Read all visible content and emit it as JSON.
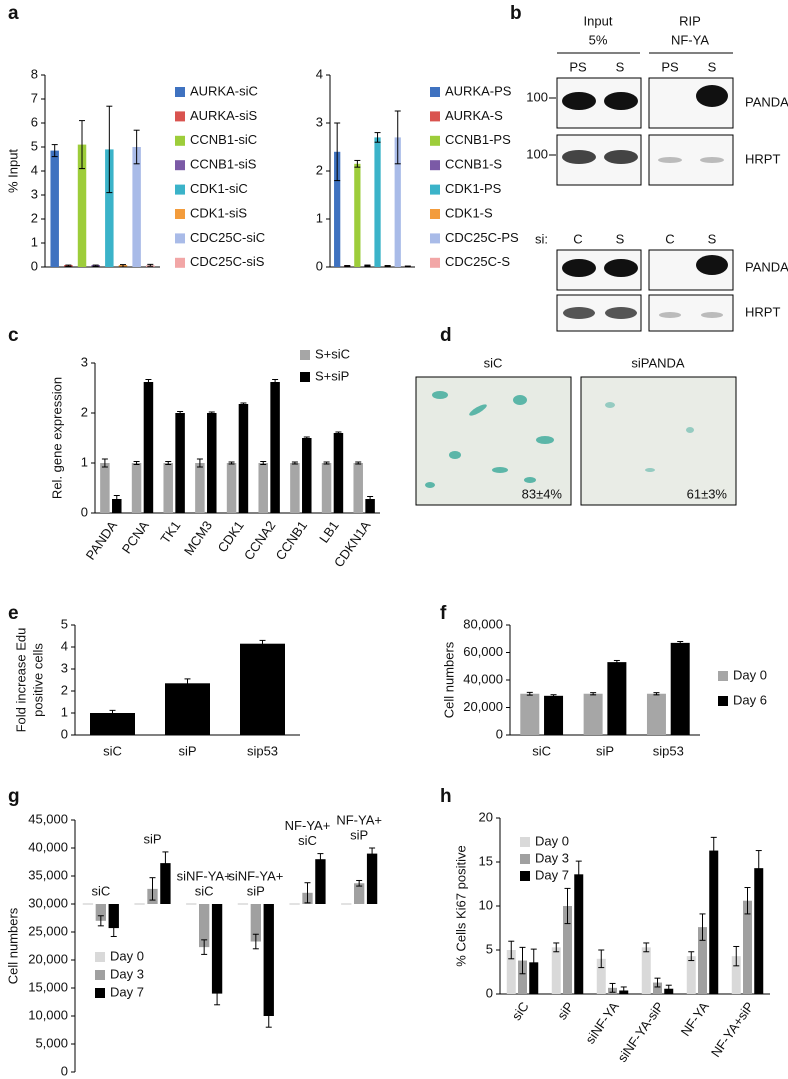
{
  "panel_labels": [
    "a",
    "b",
    "c",
    "d",
    "e",
    "f",
    "g",
    "h"
  ],
  "gel": {
    "header": [
      [
        "Input",
        "5%"
      ],
      [
        "RIP",
        "NF-YA"
      ]
    ],
    "lanes": [
      "PS",
      "S",
      "PS",
      "S"
    ],
    "markers": [
      "100",
      "100"
    ],
    "rows": [
      "PANDA",
      "HRPT",
      "PANDA",
      "HRPT"
    ],
    "si_label": "si:",
    "si_lanes": [
      "C",
      "S",
      "C",
      "S"
    ]
  },
  "staining": [
    {
      "label": "siC",
      "value": "83±4%"
    },
    {
      "label": "siPANDA",
      "value": "61±3%"
    }
  ],
  "chart_data": [
    {
      "type": "bar",
      "ylabel": "% Input",
      "categories": [
        null
      ],
      "ylim": [
        0,
        8
      ],
      "yticks": [
        0,
        1,
        2,
        3,
        4,
        5,
        6,
        7,
        8
      ],
      "legend": "right",
      "series": [
        {
          "name": "AURKA-siC",
          "color": "#3f72c0",
          "values": [
            4.85
          ],
          "errors": [
            0.25
          ]
        },
        {
          "name": "AURKA-siS",
          "color": "#d9534f",
          "values": [
            0.05
          ],
          "errors": [
            0.03
          ]
        },
        {
          "name": "CCNB1-siC",
          "color": "#9dcd3a",
          "values": [
            5.1
          ],
          "errors": [
            1.0
          ]
        },
        {
          "name": "CCNB1-siS",
          "color": "#7b5aa6",
          "values": [
            0.05
          ],
          "errors": [
            0.03
          ]
        },
        {
          "name": "CDK1-siC",
          "color": "#3bb3c9",
          "values": [
            4.9
          ],
          "errors": [
            1.8
          ]
        },
        {
          "name": "CDK1-siS",
          "color": "#f39c3c",
          "values": [
            0.05
          ],
          "errors": [
            0.05
          ]
        },
        {
          "name": "CDC25C-siC",
          "color": "#a9bbe8",
          "values": [
            5.0
          ],
          "errors": [
            0.7
          ]
        },
        {
          "name": "CDC25C-siS",
          "color": "#f2a6a6",
          "values": [
            0.07
          ],
          "errors": [
            0.04
          ]
        }
      ]
    },
    {
      "type": "bar",
      "categories": [
        null
      ],
      "ylim": [
        0,
        4
      ],
      "yticks": [
        0,
        1,
        2,
        3,
        4
      ],
      "legend": "right",
      "series": [
        {
          "name": "AURKA-PS",
          "color": "#3f72c0",
          "values": [
            2.4
          ],
          "errors": [
            0.6
          ]
        },
        {
          "name": "AURKA-S",
          "color": "#d9534f",
          "values": [
            0.02
          ],
          "errors": [
            0.01
          ]
        },
        {
          "name": "CCNB1-PS",
          "color": "#9dcd3a",
          "values": [
            2.15
          ],
          "errors": [
            0.07
          ]
        },
        {
          "name": "CCNB1-S",
          "color": "#7b5aa6",
          "values": [
            0.03
          ],
          "errors": [
            0.01
          ]
        },
        {
          "name": "CDK1-PS",
          "color": "#3bb3c9",
          "values": [
            2.7
          ],
          "errors": [
            0.1
          ]
        },
        {
          "name": "CDK1-S",
          "color": "#f39c3c",
          "values": [
            0.02
          ],
          "errors": [
            0.01
          ]
        },
        {
          "name": "CDC25C-PS",
          "color": "#a9bbe8",
          "values": [
            2.7
          ],
          "errors": [
            0.55
          ]
        },
        {
          "name": "CDC25C-S",
          "color": "#f2a6a6",
          "values": [
            0.01
          ],
          "errors": [
            0.01
          ]
        }
      ]
    },
    {
      "type": "bar",
      "ylabel": "Rel. gene expression",
      "categories": [
        "PANDA",
        "PCNA",
        "TK1",
        "MCM3",
        "CDK1",
        "CCNA2",
        "CCNB1",
        "LB1",
        "CDKN1A"
      ],
      "ylim": [
        0,
        3
      ],
      "yticks": [
        0,
        1,
        2,
        3
      ],
      "legend": "upper-right",
      "series": [
        {
          "name": "S+siC",
          "color": "#a6a6a6",
          "values": [
            1,
            1,
            1,
            1,
            1,
            1,
            1,
            1,
            1
          ],
          "errors": [
            0.08,
            0.03,
            0.03,
            0.08,
            0.02,
            0.03,
            0.02,
            0.02,
            0.02
          ]
        },
        {
          "name": "S+siP",
          "color": "#000000",
          "values": [
            0.28,
            2.62,
            2.0,
            2.0,
            2.18,
            2.62,
            1.5,
            1.6,
            0.28
          ],
          "errors": [
            0.07,
            0.05,
            0.03,
            0.02,
            0.02,
            0.05,
            0.02,
            0.02,
            0.05
          ]
        }
      ]
    },
    {
      "type": "bar",
      "ylabel": [
        "Fold increase Edu",
        "positive cells"
      ],
      "categories": [
        "siC",
        "siP",
        "sip53"
      ],
      "values": [
        1.0,
        2.35,
        4.15
      ],
      "errors": [
        0.12,
        0.2,
        0.15
      ],
      "color": "#000000",
      "ylim": [
        0,
        5
      ],
      "yticks": [
        0,
        1,
        2,
        3,
        4,
        5
      ]
    },
    {
      "type": "bar",
      "ylabel": "Cell numbers",
      "categories": [
        "siC",
        "siP",
        "sip53"
      ],
      "ylim": [
        0,
        80000
      ],
      "yticks": [
        0,
        {
          "value": 20000,
          "label": "20,000"
        },
        {
          "value": 40000,
          "label": "40,000"
        },
        {
          "value": 60000,
          "label": "60,000"
        },
        {
          "value": 80000,
          "label": "80,000"
        }
      ],
      "legend": "right",
      "series": [
        {
          "name": "Day 0",
          "color": "#a6a6a6",
          "values": [
            30000,
            30000,
            30000
          ],
          "errors": [
            1000,
            800,
            800
          ]
        },
        {
          "name": "Day 6",
          "color": "#000000",
          "values": [
            28500,
            53000,
            67000
          ],
          "errors": [
            800,
            1200,
            1000
          ]
        }
      ]
    },
    {
      "type": "bar",
      "ylabel": "Cell numbers",
      "baseline": 30000,
      "categories": [
        [
          "siC"
        ],
        [
          "siP"
        ],
        [
          "siNF-YA+",
          "siC"
        ],
        [
          "siNF-YA+",
          "siP"
        ],
        [
          "NF-YA+",
          "siC"
        ],
        [
          "NF-YA+",
          "siP"
        ]
      ],
      "ylim": [
        0,
        45000
      ],
      "yticks": [
        0,
        {
          "value": 5000,
          "label": "5,000"
        },
        {
          "value": 10000,
          "label": "10,000"
        },
        {
          "value": 15000,
          "label": "15,000"
        },
        {
          "value": 20000,
          "label": "20,000"
        },
        {
          "value": 25000,
          "label": "25,000"
        },
        {
          "value": 30000,
          "label": "30,000"
        },
        {
          "value": 35000,
          "label": "35,000"
        },
        {
          "value": 40000,
          "label": "40,000"
        },
        {
          "value": 45000,
          "label": "45,000"
        }
      ],
      "legend": "lower-left",
      "series": [
        {
          "name": "Day 0",
          "color": "#d9d9d9",
          "values": [
            30000,
            30000,
            30000,
            30000,
            30000,
            30000
          ]
        },
        {
          "name": "Day 3",
          "color": "#a0a0a0",
          "values": [
            27000,
            32700,
            22300,
            23300,
            32000,
            33700
          ],
          "errors": [
            900,
            2000,
            1300,
            1300,
            1800,
            500
          ]
        },
        {
          "name": "Day 7",
          "color": "#000000",
          "values": [
            25700,
            37300,
            14000,
            10000,
            38000,
            39000
          ],
          "errors": [
            1500,
            2000,
            2000,
            2000,
            1000,
            1000
          ]
        }
      ]
    },
    {
      "type": "bar",
      "ylabel": "% Cells Ki67 positive",
      "categories": [
        "siC",
        "siP",
        "siNF-YA",
        "siNF-YA-siP",
        "NF-YA",
        "NF-YA+siP"
      ],
      "ylim": [
        0,
        20
      ],
      "yticks": [
        0,
        5,
        10,
        15,
        20
      ],
      "legend": "upper-left",
      "series": [
        {
          "name": "Day 0",
          "color": "#d9d9d9",
          "values": [
            5,
            5.3,
            4,
            5.3,
            4.3,
            4.3
          ],
          "errors": [
            1,
            0.5,
            1,
            0.5,
            0.5,
            1.1
          ]
        },
        {
          "name": "Day 3",
          "color": "#a0a0a0",
          "values": [
            3.8,
            10,
            0.7,
            1.3,
            7.6,
            10.6
          ],
          "errors": [
            1.5,
            2,
            0.5,
            0.5,
            1.5,
            1.5
          ]
        },
        {
          "name": "Day 7",
          "color": "#000000",
          "values": [
            3.6,
            13.6,
            0.4,
            0.6,
            16.3,
            14.3
          ],
          "errors": [
            1.5,
            1.5,
            0.4,
            0.4,
            1.5,
            2
          ]
        }
      ]
    }
  ]
}
